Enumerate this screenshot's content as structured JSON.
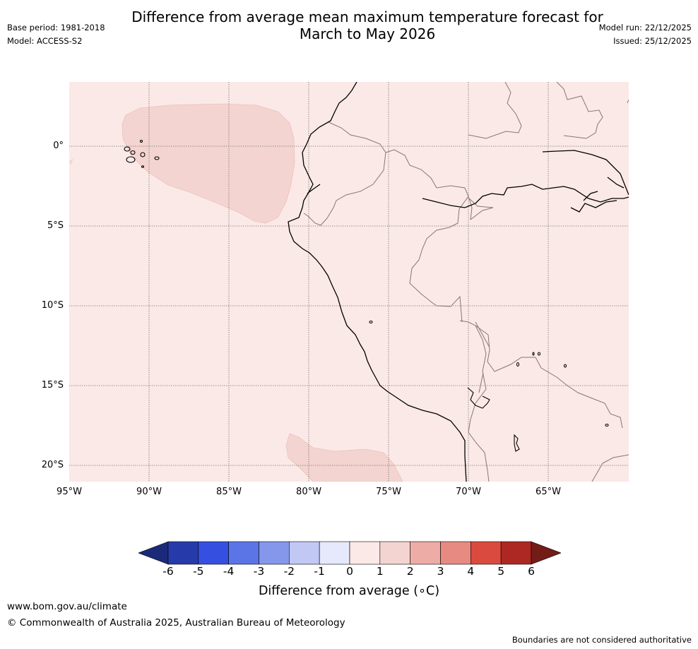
{
  "title": {
    "line1": "Difference from average mean maximum temperature forecast for",
    "line2": "March to May 2026"
  },
  "meta": {
    "base_period": "Base period: 1981-2018",
    "model": "Model: ACCESS-S2",
    "model_run": "Model run: 22/12/2025",
    "issued": "Issued: 25/12/2025"
  },
  "map": {
    "lon_ticks": [
      "95°W",
      "90°W",
      "85°W",
      "80°W",
      "75°W",
      "70°W",
      "65°W"
    ],
    "lat_ticks": [
      "0°",
      "5°S",
      "10°S",
      "15°S",
      "20°S"
    ],
    "background_color": "#fbe9e7",
    "anomaly_color": "#f4d4d0"
  },
  "colorbar": {
    "labels": [
      "-6",
      "-5",
      "-4",
      "-3",
      "-2",
      "-1",
      "0",
      "1",
      "2",
      "3",
      "4",
      "5",
      "6"
    ],
    "colors": [
      "#1b2a78",
      "#263ba9",
      "#3550e0",
      "#5b75e6",
      "#8597ea",
      "#c1c8f4",
      "#e6e9fb",
      "#fbe9e7",
      "#f4d4d0",
      "#eeaca6",
      "#e78a81",
      "#db4a3e",
      "#ad2822",
      "#741d17"
    ],
    "title": "Difference from average (∘C)"
  },
  "footer": {
    "url": "www.bom.gov.au/climate",
    "copyright": "© Commonwealth of Australia 2025, Australian Bureau of Meteorology",
    "disclaimer": "Boundaries are not considered authoritative"
  }
}
